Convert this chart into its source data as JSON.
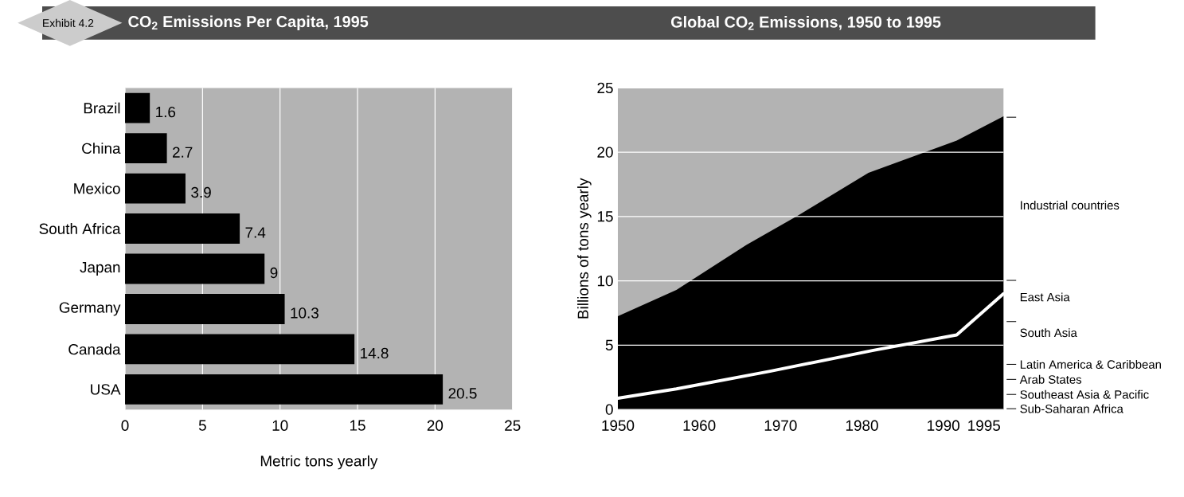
{
  "chart_data": [
    {
      "type": "bar",
      "orientation": "horizontal",
      "title": "CO$_{2}$ Emissions Per Capita, 1995",
      "xlabel": "Metric tons yearly",
      "annotations": [
        "Exhibit 4.2"
      ],
      "categories": [
        "Brazil",
        "China",
        "Mexico",
        "South Africa",
        "Japan",
        "Germany",
        "Canada",
        "USA"
      ],
      "values": [
        1.6,
        2.7,
        3.9,
        7.4,
        9,
        10.3,
        14.8,
        20.5
      ],
      "color": "#000000",
      "xlim": [
        0,
        25
      ],
      "xticks": [
        0,
        5,
        10,
        15,
        20,
        25
      ],
      "grid": "x",
      "data_labels": true
    },
    {
      "type": "area",
      "title": "Global CO$_{2}$ Emissions, 1950 to 1995",
      "ylabel": "Billions of tons yearly",
      "series": [
        {
          "type": "area",
          "color": "#000000",
          "values": [
            7.25,
            9.3,
            12.8,
            15.1,
            18.4,
            20.9,
            22.8
          ]
        },
        {
          "type": "line",
          "color": "#ffffff",
          "x": [
            1950,
            1957.2,
            1968.7,
            1981.4,
            1991.65,
            1997.4
          ],
          "values": [
            0.87,
            1.6,
            2.97,
            4.6,
            5.8,
            9.0
          ]
        }
      ],
      "x": [
        1950,
        1957.2,
        1965.8,
        1972.2,
        1980.8,
        1991.65,
        1997.4
      ],
      "xlim": [
        1950,
        1997.4
      ],
      "xticks": [
        1950,
        1960,
        1970,
        1980,
        1990,
        1995
      ],
      "ylim": [
        0,
        25
      ],
      "yticks": [
        0,
        5,
        10,
        15,
        20,
        25
      ],
      "grid": "y",
      "annotations": [
        "Industrial countries",
        "East Asia",
        "South Asia",
        "Latin America & Caribbean",
        "Arab States",
        "Southeast Asia & Pacific",
        "Sub-Saharan Africa"
      ]
    }
  ]
}
